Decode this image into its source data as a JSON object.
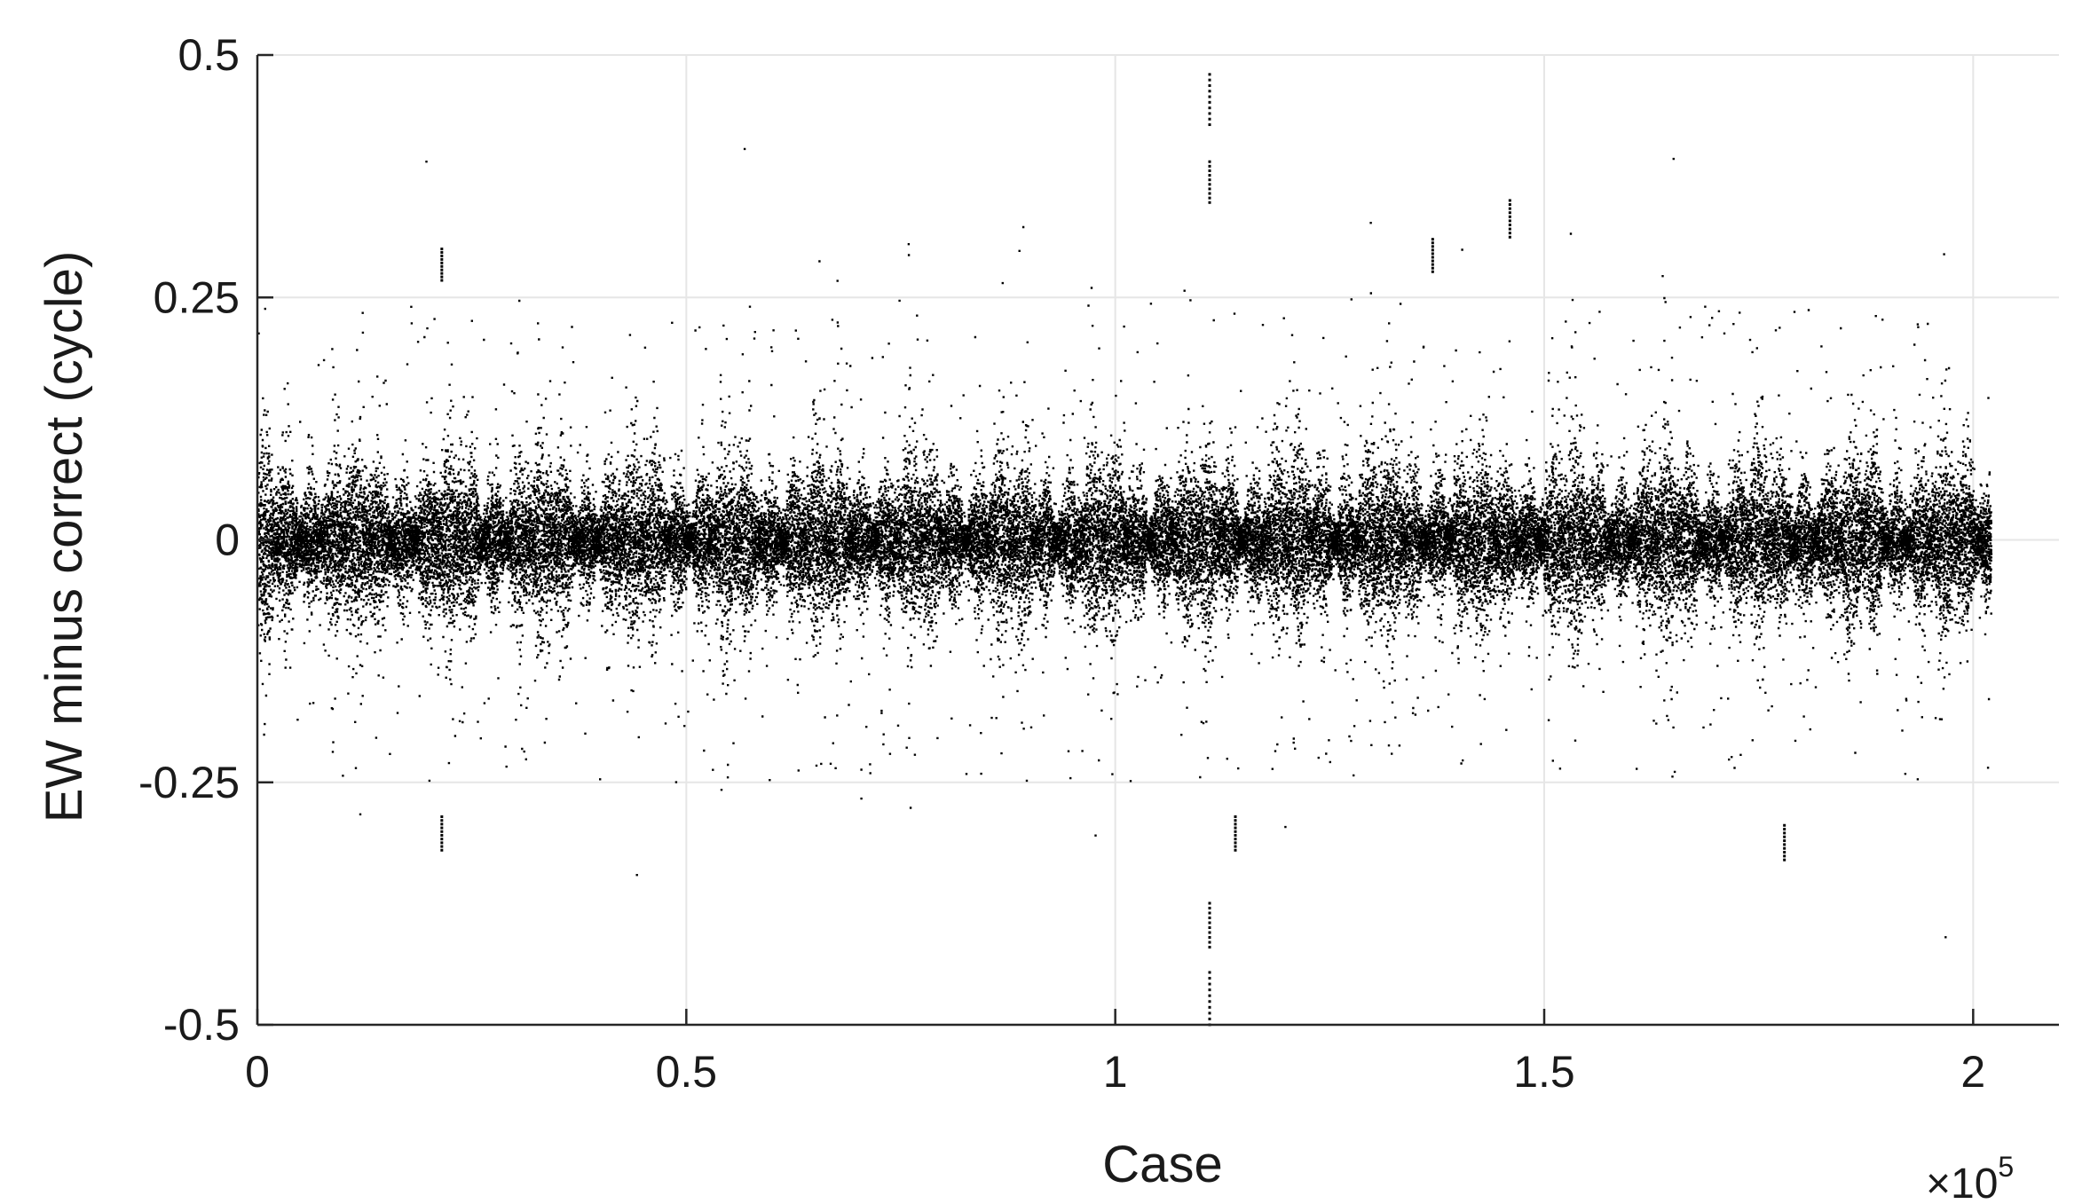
{
  "chart_data": {
    "type": "scatter",
    "title": "",
    "xlabel": "Case",
    "ylabel": "EW minus correct (cycle)",
    "x_exponent_label": {
      "base": "×10",
      "exponent": "5"
    },
    "xlim": [
      0,
      2.1
    ],
    "ylim": [
      -0.5,
      0.5
    ],
    "xticks": [
      0,
      0.5,
      1,
      1.5,
      2
    ],
    "xtick_labels": [
      "0",
      "0.5",
      "1",
      "1.5",
      "2"
    ],
    "yticks": [
      0.5,
      0.25,
      0,
      -0.25,
      -0.5
    ],
    "ytick_labels": [
      "0.5",
      "0.25",
      "0",
      "-0.25",
      "-0.5"
    ],
    "grid": true,
    "n_points": 202000,
    "x_range": [
      0,
      2.02
    ],
    "marker_color": "#000000",
    "grid_color": "#e6e6e6",
    "axis_color": "#262626",
    "notable_points": [
      {
        "x": 1.11,
        "y": 0.48
      },
      {
        "x": 1.11,
        "y": 0.39
      },
      {
        "x": 1.11,
        "y": -0.42
      },
      {
        "x": 1.11,
        "y": -0.5
      },
      {
        "x": 1.46,
        "y": 0.35
      },
      {
        "x": 0.215,
        "y": 0.3
      },
      {
        "x": 0.215,
        "y": -0.32
      },
      {
        "x": 1.78,
        "y": -0.33
      },
      {
        "x": 1.14,
        "y": -0.32
      },
      {
        "x": 1.37,
        "y": 0.31
      }
    ]
  }
}
